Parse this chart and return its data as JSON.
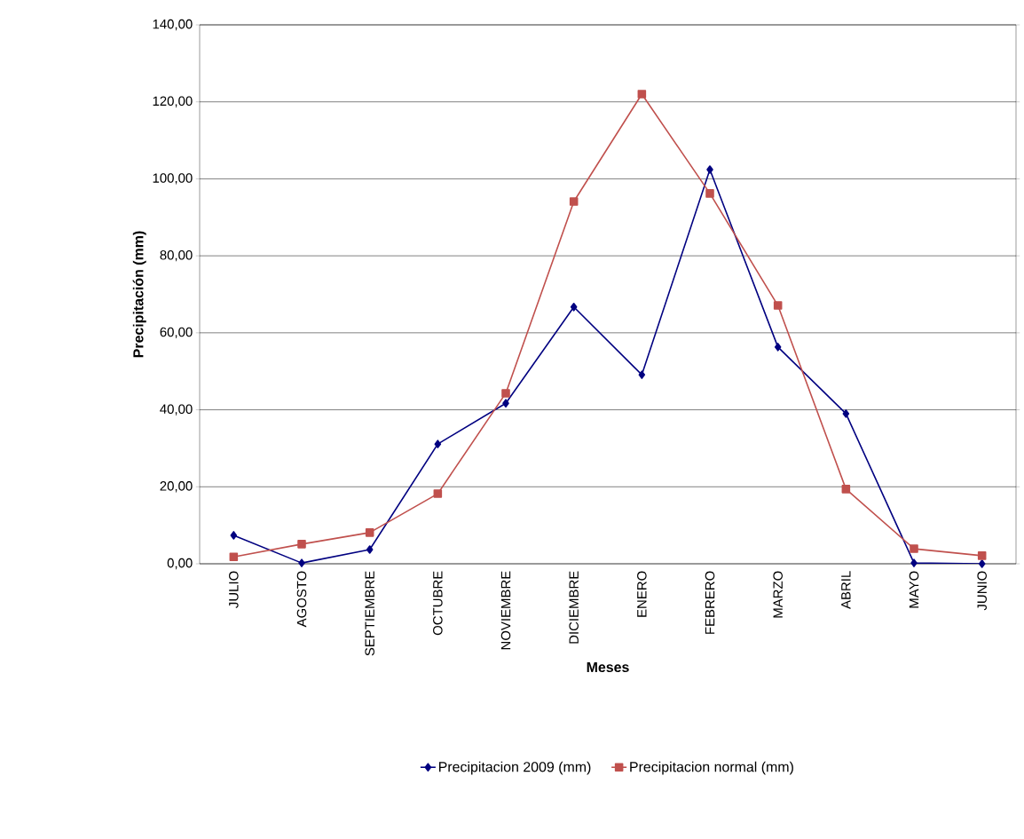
{
  "chart_data": {
    "type": "line",
    "xlabel": "Meses",
    "ylabel": "Precipitación  (mm)",
    "categories": [
      "JULIO",
      "AGOSTO",
      "SEPTIEMBRE",
      "OCTUBRE",
      "NOVIEMBRE",
      "DICIEMBRE",
      "ENERO",
      "FEBRERO",
      "MARZO",
      "ABRIL",
      "MAYO",
      "JUNIO"
    ],
    "series": [
      {
        "name": "Precipitacion 2009 (mm)",
        "color": "#000080",
        "marker": "diamond",
        "values": [
          7.4,
          0.2,
          3.7,
          31.1,
          41.7,
          66.7,
          49.1,
          102.4,
          56.3,
          39.0,
          0.2,
          0.0
        ]
      },
      {
        "name": "Precipitacion normal (mm)",
        "color": "#c0504d",
        "marker": "square",
        "values": [
          1.8,
          5.1,
          8.1,
          18.2,
          44.3,
          94.1,
          122.0,
          96.2,
          67.1,
          19.4,
          3.9,
          2.1
        ]
      }
    ],
    "ylim": [
      0,
      140
    ],
    "yticks": [
      {
        "value": 0,
        "label": "0,00"
      },
      {
        "value": 20,
        "label": "20,00"
      },
      {
        "value": 40,
        "label": "40,00"
      },
      {
        "value": 60,
        "label": "60,00"
      },
      {
        "value": 80,
        "label": "80,00"
      },
      {
        "value": 100,
        "label": "100,00"
      },
      {
        "value": 120,
        "label": "120,00"
      },
      {
        "value": 140,
        "label": "140,00"
      }
    ],
    "grid": "y",
    "legend": "bottom",
    "line_style": "solid"
  }
}
